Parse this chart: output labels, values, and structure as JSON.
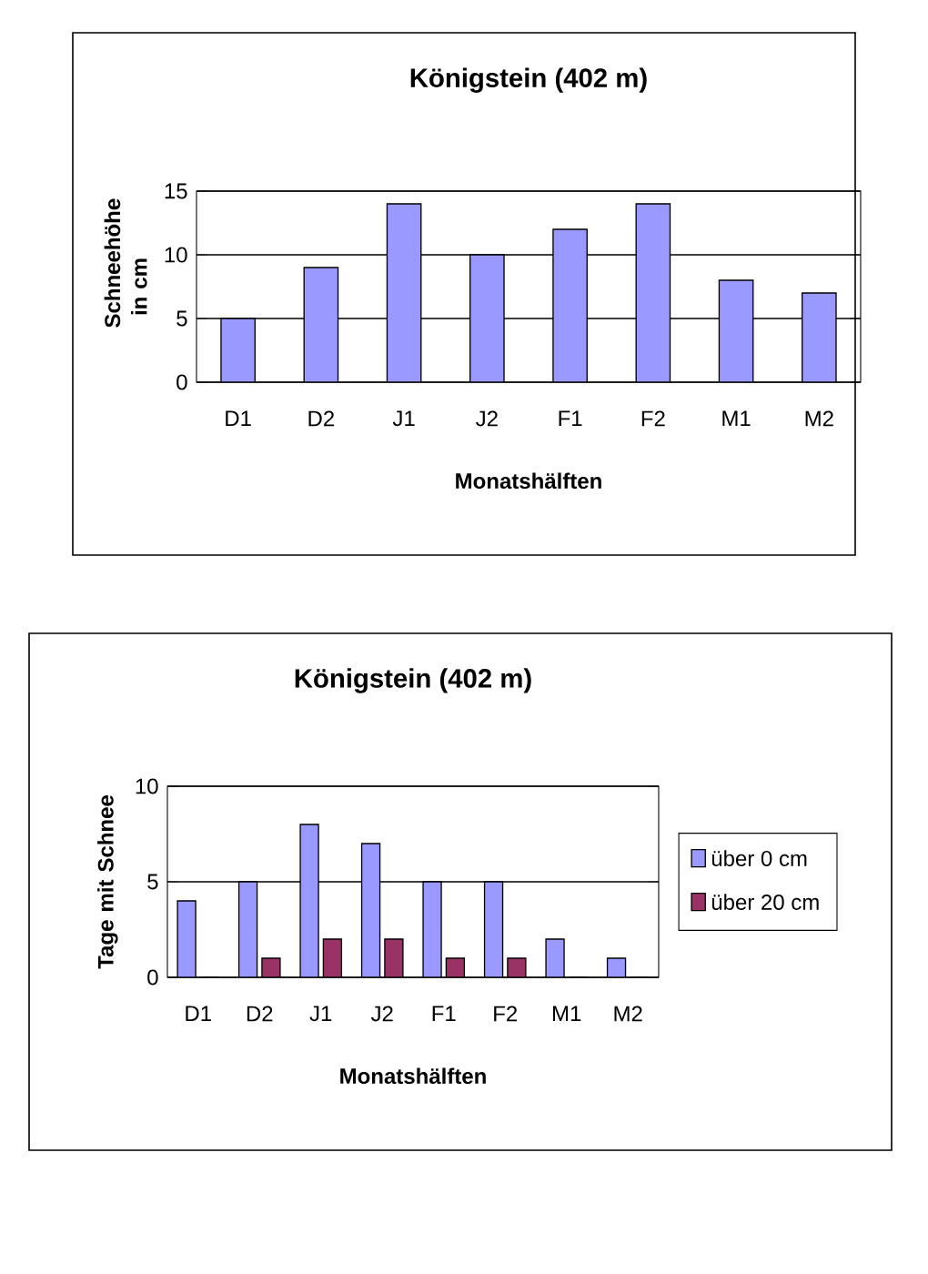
{
  "chart_data": [
    {
      "type": "bar",
      "title": "Königstein (402 m)",
      "xlabel": "Monatshälften",
      "ylabel": "Schneehöhe in cm",
      "categories": [
        "D1",
        "D2",
        "J1",
        "J2",
        "F1",
        "F2",
        "M1",
        "M2"
      ],
      "series": [
        {
          "color": "#9999ff",
          "values": [
            5,
            9,
            14,
            10,
            12,
            14,
            8,
            7
          ]
        }
      ],
      "ylim": [
        0,
        15
      ],
      "yticks": [
        0,
        5,
        10,
        15
      ],
      "grid": "y",
      "legend": false
    },
    {
      "type": "bar",
      "title": "Königstein (402 m)",
      "xlabel": "Monatshälften",
      "ylabel": "Tage mit Schnee",
      "categories": [
        "D1",
        "D2",
        "J1",
        "J2",
        "F1",
        "F2",
        "M1",
        "M2"
      ],
      "series": [
        {
          "name": "über 0 cm",
          "color": "#9999ff",
          "values": [
            4,
            5,
            8,
            7,
            5,
            5,
            2,
            1
          ]
        },
        {
          "name": "über 20 cm",
          "color": "#993366",
          "values": [
            0,
            1,
            2,
            2,
            1,
            1,
            0,
            0
          ]
        }
      ],
      "ylim": [
        0,
        10
      ],
      "yticks": [
        0,
        5,
        10
      ],
      "grid": "y",
      "legend": "right"
    }
  ]
}
